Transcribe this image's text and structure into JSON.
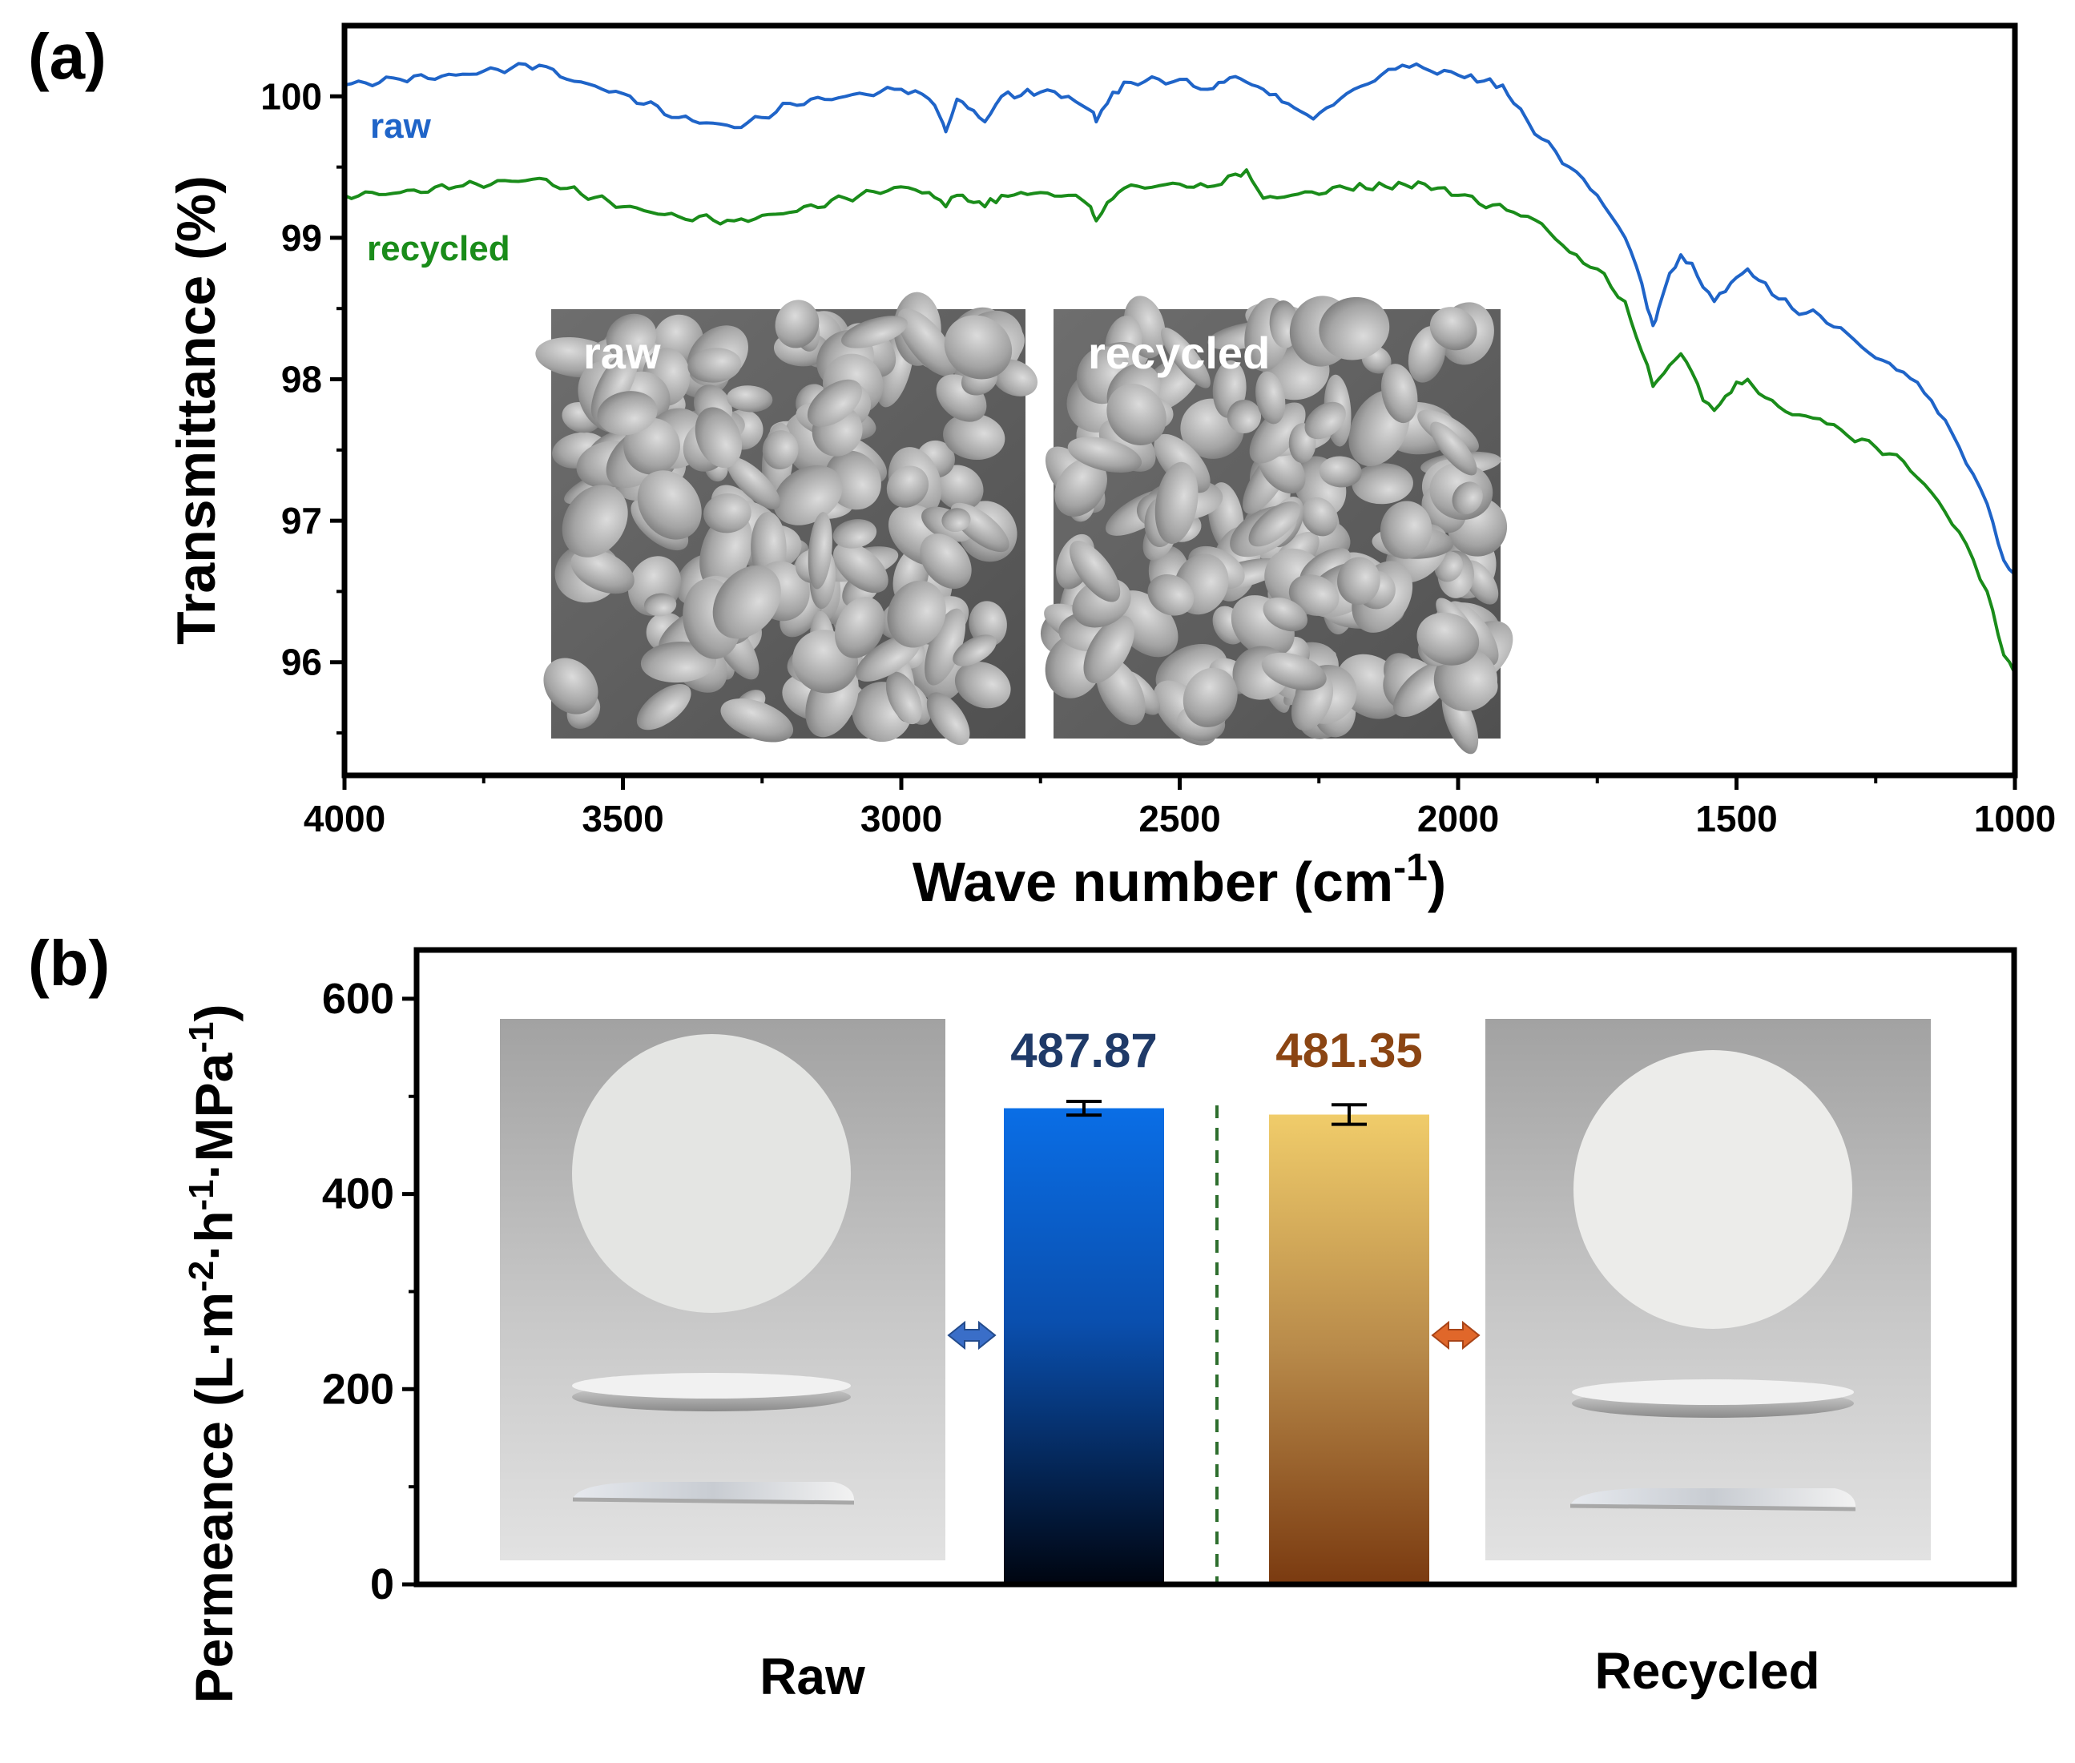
{
  "chart_data": [
    {
      "panel": "(a)",
      "type": "line",
      "xlabel_main": "Wave number (cm",
      "xlabel_sup": "-1",
      "xlabel_end": ")",
      "ylabel": "Transmittance (%)",
      "xlim": [
        4000,
        1000
      ],
      "ylim": [
        95.2,
        100.5
      ],
      "x_ticks": [
        4000,
        3500,
        3000,
        2500,
        2000,
        1500,
        1000
      ],
      "y_ticks": [
        96,
        97,
        98,
        99,
        100
      ],
      "grid": false,
      "series": [
        {
          "name": "raw",
          "color": "#1f64c8",
          "x": [
            4000,
            3900,
            3800,
            3700,
            3650,
            3600,
            3500,
            3400,
            3300,
            3250,
            3200,
            3100,
            3000,
            2950,
            2930,
            2920,
            2900,
            2870,
            2850,
            2820,
            2750,
            2700,
            2660,
            2650,
            2630,
            2600,
            2500,
            2450,
            2420,
            2400,
            2380,
            2350,
            2260,
            2200,
            2100,
            2050,
            2000,
            1920,
            1900,
            1850,
            1800,
            1750,
            1700,
            1680,
            1660,
            1650,
            1640,
            1620,
            1600,
            1580,
            1560,
            1540,
            1520,
            1500,
            1480,
            1460,
            1400,
            1350,
            1300,
            1250,
            1200,
            1150,
            1100,
            1050,
            1020,
            1000
          ],
          "y": [
            100.08,
            100.12,
            100.15,
            100.2,
            100.22,
            100.12,
            100.02,
            99.85,
            99.78,
            99.85,
            99.95,
            100.0,
            100.05,
            99.98,
            99.85,
            99.75,
            99.98,
            99.9,
            99.82,
            100.0,
            100.03,
            100.0,
            99.9,
            99.82,
            99.95,
            100.1,
            100.12,
            100.05,
            100.1,
            100.14,
            100.1,
            100.05,
            99.84,
            100.02,
            100.22,
            100.18,
            100.15,
            100.08,
            99.95,
            99.7,
            99.5,
            99.3,
            99.0,
            98.8,
            98.5,
            98.38,
            98.5,
            98.75,
            98.88,
            98.82,
            98.65,
            98.55,
            98.62,
            98.72,
            98.78,
            98.7,
            98.5,
            98.45,
            98.32,
            98.15,
            98.05,
            97.85,
            97.52,
            97.12,
            96.72,
            96.62
          ]
        },
        {
          "name": "recycled",
          "color": "#1a8c1a",
          "x": [
            4000,
            3900,
            3800,
            3700,
            3650,
            3600,
            3500,
            3400,
            3300,
            3200,
            3100,
            3000,
            2950,
            2920,
            2900,
            2870,
            2850,
            2820,
            2750,
            2700,
            2660,
            2650,
            2630,
            2600,
            2500,
            2450,
            2400,
            2380,
            2350,
            2300,
            2200,
            2060,
            2000,
            1900,
            1850,
            1800,
            1750,
            1700,
            1680,
            1660,
            1650,
            1640,
            1620,
            1600,
            1580,
            1560,
            1540,
            1520,
            1500,
            1480,
            1460,
            1400,
            1350,
            1300,
            1250,
            1200,
            1150,
            1100,
            1050,
            1020,
            1000
          ],
          "y": [
            99.3,
            99.32,
            99.36,
            99.4,
            99.42,
            99.35,
            99.22,
            99.15,
            99.12,
            99.18,
            99.28,
            99.36,
            99.32,
            99.22,
            99.3,
            99.25,
            99.22,
            99.3,
            99.32,
            99.3,
            99.22,
            99.12,
            99.25,
            99.35,
            99.38,
            99.36,
            99.45,
            99.48,
            99.28,
            99.3,
            99.35,
            99.38,
            99.3,
            99.18,
            99.1,
            98.9,
            98.78,
            98.55,
            98.3,
            98.1,
            97.95,
            98.0,
            98.1,
            98.18,
            98.05,
            97.85,
            97.78,
            97.88,
            97.98,
            98.0,
            97.9,
            97.75,
            97.72,
            97.6,
            97.52,
            97.42,
            97.2,
            96.92,
            96.5,
            96.05,
            95.92
          ]
        }
      ],
      "series_labels": [
        "raw",
        "recycled"
      ],
      "insets": [
        {
          "name": "raw-sem-image",
          "label": "raw"
        },
        {
          "name": "recycled-sem-image",
          "label": "recycled"
        }
      ]
    },
    {
      "panel": "(b)",
      "type": "bar",
      "categories": [
        "Raw",
        "Recycled"
      ],
      "values": [
        487.87,
        481.35
      ],
      "error": [
        7,
        10
      ],
      "value_labels": [
        "487.87",
        "481.35"
      ],
      "value_label_colors": [
        "#1f3a68",
        "#8b4513"
      ],
      "bar_color_top": [
        "#0a6ee6",
        "#f0cc6a"
      ],
      "bar_color_bottom": [
        "#000510",
        "#7a3a10"
      ],
      "arrow_colors": [
        "#3a6ec8",
        "#e0672a"
      ],
      "ylabel_main": "Permeance (L·m",
      "ylabel_parts": [
        "-2",
        "·h",
        "-1",
        "·MPa",
        "-1"
      ],
      "ylabel_end": ")",
      "ylim": [
        0,
        650
      ],
      "y_ticks": [
        0,
        200,
        400,
        600
      ],
      "grid": false,
      "photos": [
        {
          "name": "raw-membrane-photo"
        },
        {
          "name": "recycled-membrane-photo"
        }
      ]
    }
  ]
}
